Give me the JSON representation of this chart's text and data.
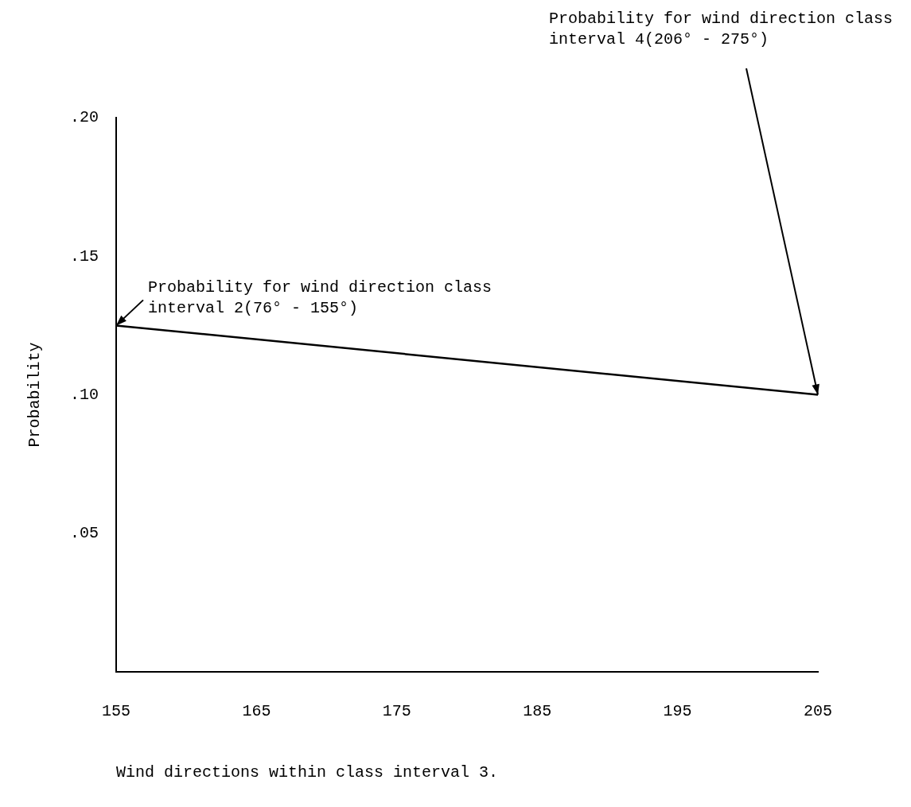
{
  "chart_data": {
    "type": "line",
    "xlabel": "Wind directions within class interval 3.",
    "ylabel": "Probability",
    "x": [
      155,
      205
    ],
    "series": [
      {
        "color": "#000000",
        "values": [
          0.125,
          0.1
        ]
      }
    ],
    "xlim": [
      155,
      205
    ],
    "xticks": [
      155,
      165,
      175,
      185,
      195,
      205
    ],
    "ylim": [
      0,
      0.2
    ],
    "yticks": [
      {
        "value": 0.05,
        "label": ".05"
      },
      {
        "value": 0.1,
        "label": ".10"
      },
      {
        "value": 0.15,
        "label": ".15"
      },
      {
        "value": 0.2,
        "label": ".20"
      }
    ],
    "grid": false,
    "legend": false,
    "marker": "none",
    "line_style": "solid",
    "annotations": [
      {
        "text": "Probability for wind direction class interval 2(76° - 155°)",
        "x": 155,
        "y": 0.125
      },
      {
        "text": "Probability for wind direction class interval 4(206° - 275°)",
        "x": 205,
        "y": 0.1
      }
    ]
  }
}
